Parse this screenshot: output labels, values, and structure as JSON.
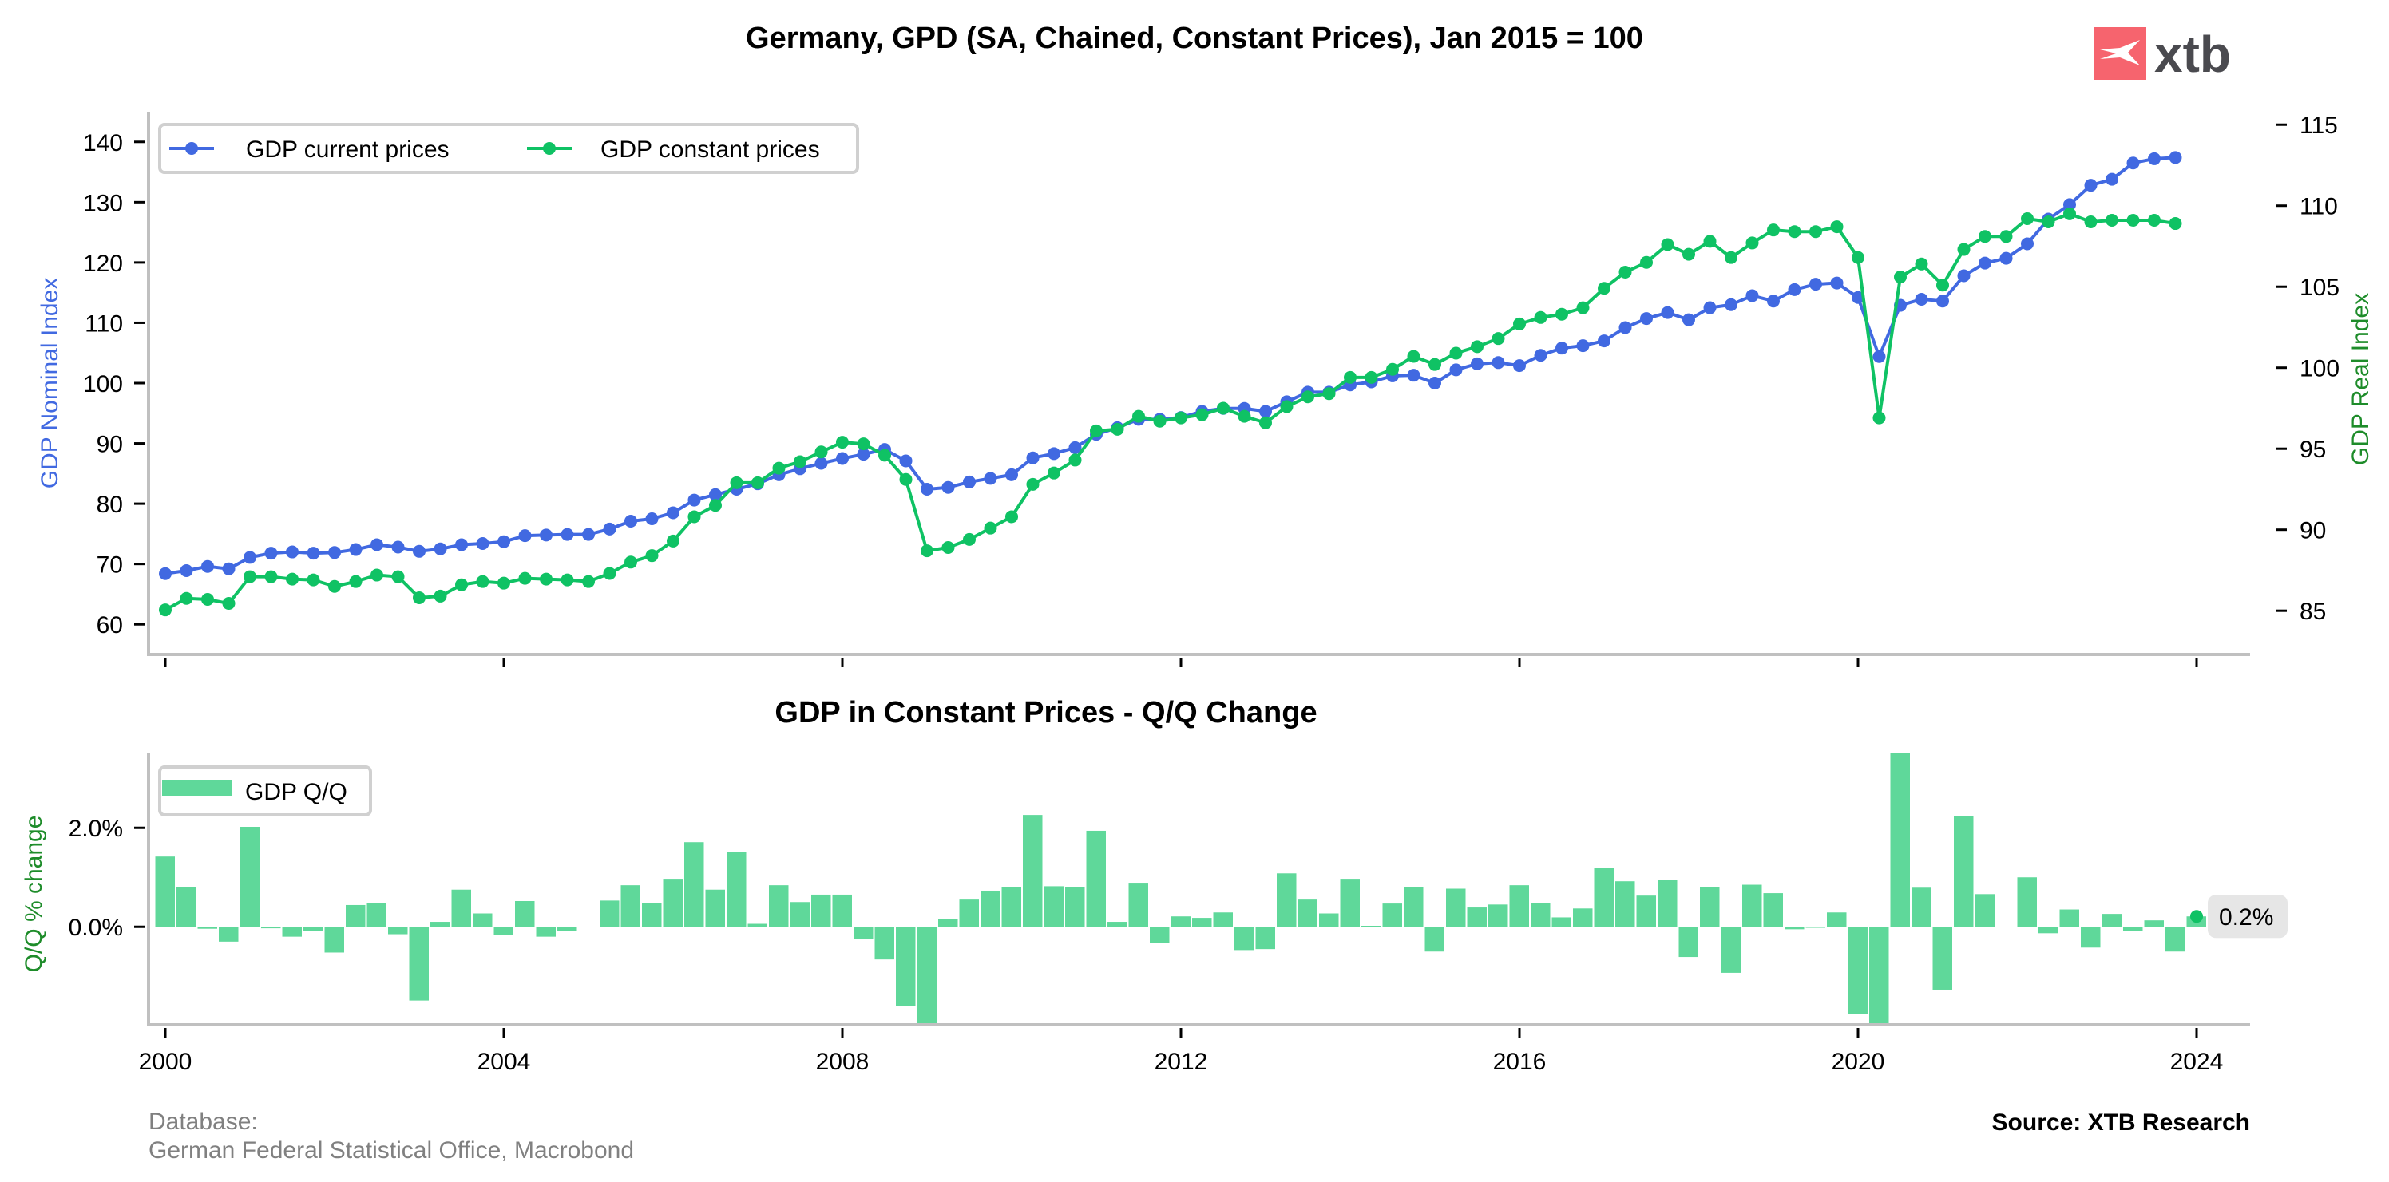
{
  "header": {
    "title": "Germany, GPD (SA, Chained, Constant Prices), Jan 2015 = 100",
    "logo_text": "xtb",
    "logo_color": "#f6646e"
  },
  "footer": {
    "database_label": "Database:",
    "database_sources": "German Federal Statistical Office, Macrobond",
    "source": "Source: XTB Research"
  },
  "chart_data": [
    {
      "type": "line",
      "title": "Germany, GPD (SA, Chained, Constant Prices), Jan 2015 = 100",
      "x_start": "2000Q1",
      "x_frequency": "quarterly",
      "x_ticks": [
        "2000",
        "2004",
        "2008",
        "2012",
        "2016",
        "2020",
        "2024"
      ],
      "legend_position": "top-left",
      "grid": false,
      "y_left": {
        "label": "GDP Nominal Index",
        "color": "#4169e1",
        "ylim": [
          55,
          145
        ],
        "ticks": [
          60,
          70,
          80,
          90,
          100,
          110,
          120,
          130,
          140
        ]
      },
      "y_right": {
        "label": "GDP Real Index",
        "color": "#1e8c2a",
        "ylim": [
          82.3,
          115.8
        ],
        "ticks": [
          85,
          90,
          95,
          100,
          105,
          110,
          115
        ]
      },
      "series": [
        {
          "name": "GDP current prices",
          "axis": "left",
          "color": "#4169e1",
          "values": [
            68.4,
            68.9,
            69.6,
            69.2,
            71.1,
            71.8,
            72.0,
            71.8,
            71.9,
            72.4,
            73.2,
            72.8,
            72.1,
            72.5,
            73.2,
            73.4,
            73.7,
            74.7,
            74.8,
            74.9,
            74.9,
            75.8,
            77.1,
            77.5,
            78.5,
            80.6,
            81.5,
            82.4,
            83.3,
            84.8,
            85.8,
            86.7,
            87.5,
            88.2,
            89.0,
            87.1,
            82.4,
            82.7,
            83.6,
            84.2,
            84.8,
            87.6,
            88.3,
            89.3,
            91.5,
            92.6,
            94.0,
            94.0,
            94.3,
            95.3,
            95.8,
            95.8,
            95.3,
            96.9,
            98.5,
            98.5,
            99.7,
            100.2,
            101.2,
            101.3,
            100.0,
            102.2,
            103.2,
            103.4,
            102.9,
            104.6,
            105.8,
            106.2,
            107.0,
            109.2,
            110.7,
            111.7,
            110.5,
            112.5,
            113.0,
            114.5,
            113.6,
            115.5,
            116.4,
            116.6,
            114.2,
            104.4,
            112.9,
            113.9,
            113.6,
            117.8,
            119.9,
            120.7,
            123.1,
            127.2,
            129.6,
            132.8,
            133.8,
            136.5,
            137.2,
            137.4
          ]
        },
        {
          "name": "GDP constant prices",
          "axis": "right",
          "color": "#0fc264",
          "values": [
            85.05,
            85.76,
            85.7,
            85.45,
            87.1,
            87.1,
            86.95,
            86.9,
            86.5,
            86.8,
            87.2,
            87.1,
            85.8,
            85.9,
            86.6,
            86.8,
            86.7,
            87.0,
            86.95,
            86.9,
            86.8,
            87.3,
            88.0,
            88.4,
            89.3,
            90.8,
            91.5,
            92.9,
            92.9,
            93.8,
            94.2,
            94.8,
            95.4,
            95.3,
            94.6,
            93.1,
            88.7,
            88.9,
            89.4,
            90.1,
            90.8,
            92.8,
            93.5,
            94.3,
            96.1,
            96.2,
            97.0,
            96.7,
            96.9,
            97.1,
            97.5,
            97.0,
            96.6,
            97.6,
            98.2,
            98.4,
            99.4,
            99.4,
            99.9,
            100.7,
            100.2,
            100.9,
            101.3,
            101.8,
            102.7,
            103.1,
            103.3,
            103.7,
            104.9,
            105.9,
            106.5,
            107.6,
            107.0,
            107.8,
            106.8,
            107.7,
            108.5,
            108.4,
            108.4,
            108.7,
            106.8,
            96.9,
            105.6,
            106.4,
            105.1,
            107.3,
            108.1,
            108.1,
            109.2,
            109.0,
            109.5,
            109.0,
            109.1,
            109.1,
            109.1,
            108.9
          ]
        }
      ]
    },
    {
      "type": "bar",
      "title": "GDP in Constant Prices - Q/Q Change",
      "x_start": "2000Q1",
      "x_frequency": "quarterly",
      "x_ticks": [
        "2000",
        "2004",
        "2008",
        "2012",
        "2016",
        "2020",
        "2024"
      ],
      "ylabel": "Q/Q % change",
      "ylim": [
        -1.98,
        3.52
      ],
      "y_ticks": [
        0.0,
        2.0
      ],
      "y_tick_labels": [
        "0.0%",
        "2.0%"
      ],
      "legend_position": "top-left",
      "grid": false,
      "series": [
        {
          "name": "GDP Q/Q",
          "color": "#5fd89a",
          "values": [
            1.42,
            0.81,
            -0.04,
            -0.3,
            2.02,
            -0.03,
            -0.2,
            -0.09,
            -0.52,
            0.44,
            0.48,
            -0.15,
            -1.49,
            0.1,
            0.75,
            0.27,
            -0.17,
            0.52,
            -0.2,
            -0.08,
            -0.01,
            0.53,
            0.84,
            0.48,
            0.97,
            1.71,
            0.75,
            1.52,
            0.06,
            0.84,
            0.5,
            0.65,
            0.65,
            -0.24,
            -0.66,
            -1.6,
            -4.5,
            0.16,
            0.55,
            0.73,
            0.81,
            2.26,
            0.82,
            0.81,
            1.94,
            0.1,
            0.89,
            -0.32,
            0.21,
            0.18,
            0.29,
            -0.47,
            -0.45,
            1.08,
            0.55,
            0.27,
            0.97,
            0.02,
            0.47,
            0.81,
            -0.5,
            0.77,
            0.39,
            0.45,
            0.84,
            0.48,
            0.19,
            0.37,
            1.19,
            0.92,
            0.63,
            0.95,
            -0.61,
            0.81,
            -0.93,
            0.85,
            0.68,
            -0.05,
            -0.02,
            0.29,
            -1.77,
            -9.7,
            8.9,
            0.79,
            -1.27,
            2.23,
            0.66,
            0.0,
            1.0,
            -0.13,
            0.35,
            -0.42,
            0.26,
            -0.08,
            0.13,
            -0.5,
            0.21
          ]
        }
      ],
      "annotation": {
        "label": "0.2%",
        "point": "2024Q1",
        "value": 0.21,
        "marker_color": "#0fc264",
        "box_color": "#e6e6e6"
      }
    }
  ]
}
